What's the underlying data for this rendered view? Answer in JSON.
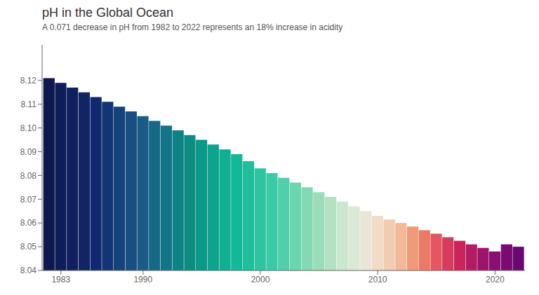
{
  "chart_data": {
    "type": "bar",
    "title": "pH in the Global Ocean",
    "subtitle": "A 0.071 decrease in pH from 1982 to 2022 represents an 18% increase in acidity",
    "x": [
      1982,
      1983,
      1984,
      1985,
      1986,
      1987,
      1988,
      1989,
      1990,
      1991,
      1992,
      1993,
      1994,
      1995,
      1996,
      1997,
      1998,
      1999,
      2000,
      2001,
      2002,
      2003,
      2004,
      2005,
      2006,
      2007,
      2008,
      2009,
      2010,
      2011,
      2012,
      2013,
      2014,
      2015,
      2016,
      2017,
      2018,
      2019,
      2020,
      2021,
      2022
    ],
    "values": [
      8.121,
      8.119,
      8.117,
      8.115,
      8.113,
      8.111,
      8.109,
      8.107,
      8.105,
      8.103,
      8.101,
      8.099,
      8.097,
      8.095,
      8.093,
      8.091,
      8.089,
      8.086,
      8.083,
      8.081,
      8.079,
      8.077,
      8.075,
      8.073,
      8.071,
      8.069,
      8.067,
      8.065,
      8.063,
      8.0615,
      8.06,
      8.0585,
      8.057,
      8.0555,
      8.054,
      8.0525,
      8.051,
      8.0495,
      8.048,
      8.051,
      8.05
    ],
    "colors": [
      "#0d1850",
      "#0e1c58",
      "#10205f",
      "#112466",
      "#12286e",
      "#143575",
      "#16427b",
      "#184f82",
      "#1a5c88",
      "#166886",
      "#127585",
      "#0e8284",
      "#0a8e82",
      "#0c9888",
      "#0ea38d",
      "#10ae92",
      "#12b898",
      "#20be9d",
      "#2ec4a2",
      "#3bcaa7",
      "#51cfab",
      "#6ad5ae",
      "#82d9b3",
      "#9addbb",
      "#b2e1c4",
      "#cbe7ce",
      "#dce8d6",
      "#e9e6d8",
      "#f0dcc7",
      "#f2ccb1",
      "#f2b898",
      "#f09a7a",
      "#ea7a66",
      "#e25761",
      "#d63c5c",
      "#c8265a",
      "#b21c64",
      "#9d156b",
      "#881070",
      "#780c70",
      "#680870"
    ],
    "xlim": [
      1981.4,
      2022.55
    ],
    "xticks": [
      1983,
      1990,
      2000,
      2010,
      2020
    ],
    "ylim": [
      8.04,
      8.135
    ],
    "yticks": [
      8.04,
      8.05,
      8.06,
      8.07,
      8.08,
      8.09,
      {
        "value": 8.1,
        "label": "8.10"
      },
      8.11,
      8.12
    ],
    "grid": false
  }
}
